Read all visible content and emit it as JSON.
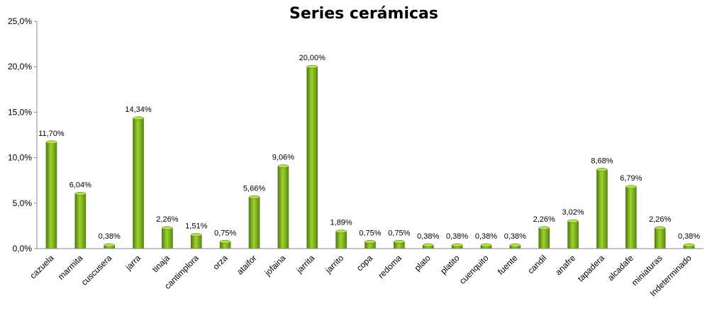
{
  "chart_data": {
    "type": "bar",
    "title": "Series cerámicas",
    "xlabel": "",
    "ylabel": "",
    "ylim": [
      0,
      25
    ],
    "yticks": [
      "0,0%",
      "5,0%",
      "10,0%",
      "15,0%",
      "20,0%",
      "25,0%"
    ],
    "grid": false,
    "legend": "none",
    "bar_color": "#7cb518",
    "categories": [
      "cazuela",
      "marmita",
      "cuscusera",
      "jarra",
      "tinaja",
      "cantimplora",
      "orza",
      "ataifor",
      "jofaina",
      "jarrita",
      "jarrito",
      "copa",
      "redoma",
      "plato",
      "platito",
      "cuenquito",
      "fuente",
      "candil",
      "anafre",
      "tapadera",
      "alcadafe",
      "miniaturas",
      "Indeterminado"
    ],
    "values": [
      11.7,
      6.04,
      0.38,
      14.34,
      2.26,
      1.51,
      0.75,
      5.66,
      9.06,
      20.0,
      1.89,
      0.75,
      0.75,
      0.38,
      0.38,
      0.38,
      0.38,
      2.26,
      3.02,
      8.68,
      6.79,
      2.26,
      0.38
    ],
    "data_labels": [
      "11,70%",
      "6,04%",
      "0,38%",
      "14,34%",
      "2,26%",
      "1,51%",
      "0,75%",
      "5,66%",
      "9,06%",
      "20,00%",
      "1,89%",
      "0,75%",
      "0,75%",
      "0,38%",
      "0,38%",
      "0,38%",
      "0,38%",
      "2,26%",
      "3,02%",
      "8,68%",
      "6,79%",
      "2,26%",
      "0,38%"
    ]
  }
}
